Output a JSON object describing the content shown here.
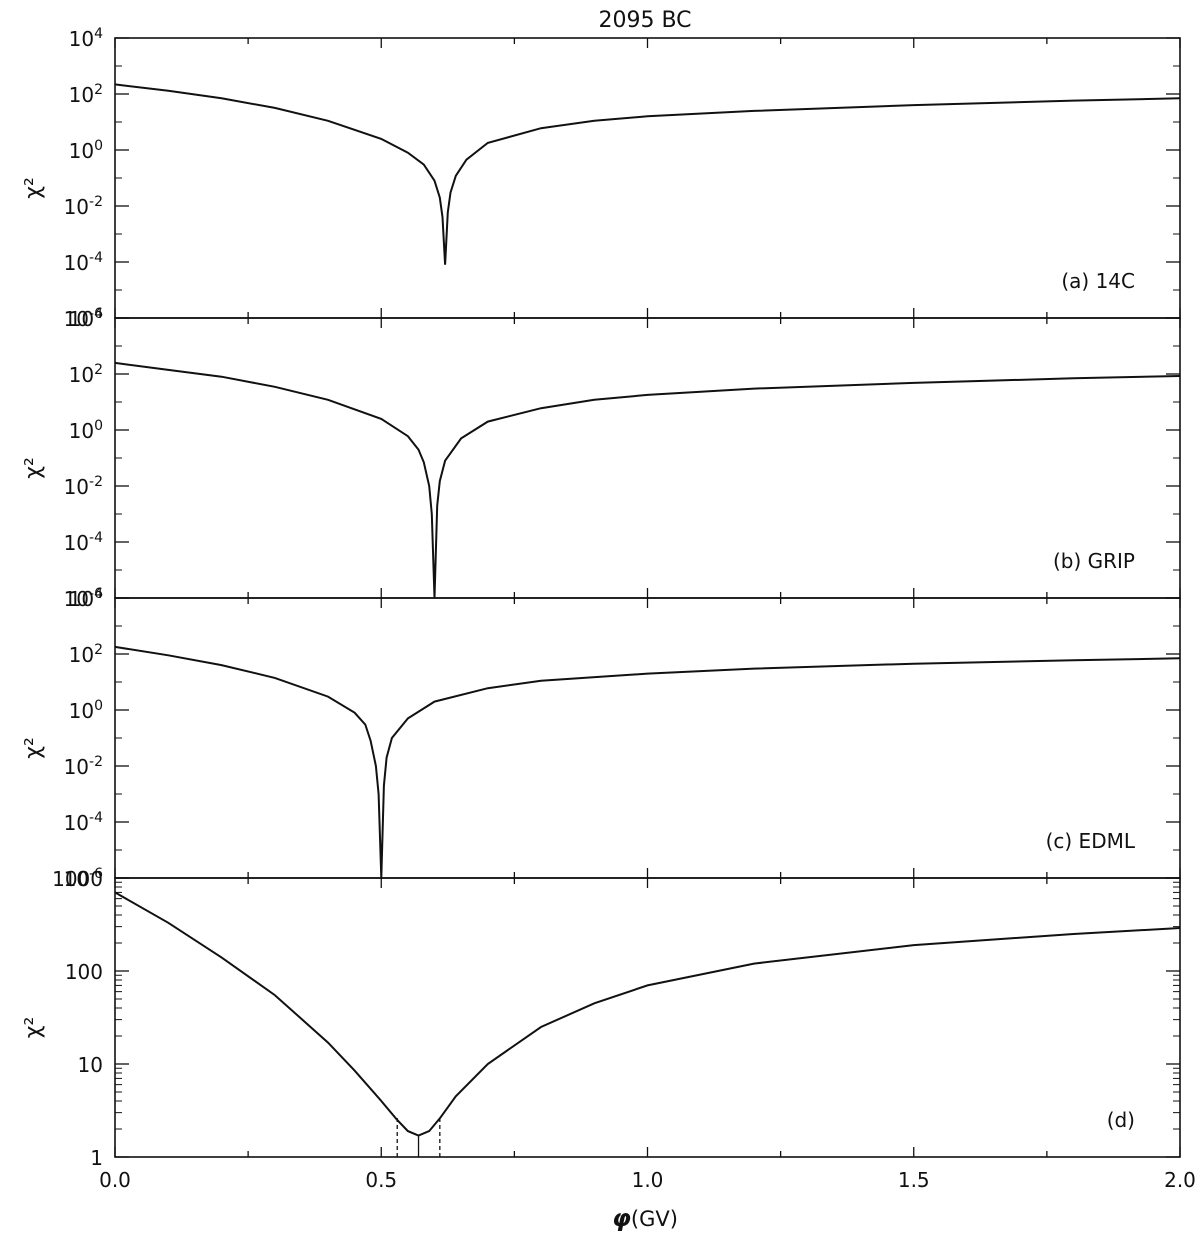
{
  "figure": {
    "title": "2095 BC",
    "xlabel_symbol": "φ",
    "xlabel_unit": "(GV)",
    "ylabel": "χ²"
  },
  "chart_data": [
    {
      "type": "line",
      "panel": "(a) 14C",
      "label": "(a) 14C",
      "scale": "log",
      "ylabel": "χ²",
      "ylim": [
        1e-06,
        10000.0
      ],
      "yticks": [
        "10^4",
        "10^2",
        "10^0",
        "10^-2",
        "10^-4",
        "10^-6"
      ],
      "xlim": [
        0.0,
        2.0
      ],
      "min_x": 0.62,
      "min_y": 8e-05,
      "series": [
        {
          "x": [
            0.0,
            0.1,
            0.2,
            0.3,
            0.4,
            0.5,
            0.55,
            0.58,
            0.6,
            0.61,
            0.615,
            0.62,
            0.625,
            0.63,
            0.64,
            0.66,
            0.7,
            0.8,
            0.9,
            1.0,
            1.2,
            1.5,
            1.8,
            2.0
          ],
          "y": [
            220,
            130,
            70,
            32,
            11,
            2.5,
            0.8,
            0.3,
            0.08,
            0.02,
            0.004,
            8e-05,
            0.006,
            0.03,
            0.12,
            0.45,
            1.8,
            6,
            11,
            16,
            25,
            40,
            58,
            70
          ]
        }
      ]
    },
    {
      "type": "line",
      "panel": "(b) GRIP",
      "label": "(b) GRIP",
      "scale": "log",
      "ylabel": "χ²",
      "ylim": [
        1e-06,
        10000.0
      ],
      "yticks": [
        "10^4",
        "10^2",
        "10^0",
        "10^-2",
        "10^-4",
        "10^-6"
      ],
      "xlim": [
        0.0,
        2.0
      ],
      "min_x": 0.6,
      "min_y": 1e-06,
      "series": [
        {
          "x": [
            0.0,
            0.1,
            0.2,
            0.3,
            0.4,
            0.5,
            0.55,
            0.57,
            0.58,
            0.59,
            0.595,
            0.6,
            0.605,
            0.61,
            0.62,
            0.65,
            0.7,
            0.8,
            0.9,
            1.0,
            1.2,
            1.5,
            1.8,
            2.0
          ],
          "y": [
            250,
            140,
            80,
            35,
            12,
            2.5,
            0.6,
            0.2,
            0.07,
            0.01,
            0.001,
            1e-06,
            0.002,
            0.015,
            0.08,
            0.5,
            2,
            6,
            12,
            18,
            30,
            48,
            70,
            85
          ]
        }
      ]
    },
    {
      "type": "line",
      "panel": "(c) EDML",
      "label": "(c) EDML",
      "scale": "log",
      "ylabel": "χ²",
      "ylim": [
        1e-06,
        10000.0
      ],
      "yticks": [
        "10^4",
        "10^2",
        "10^0",
        "10^-2",
        "10^-4",
        "10^-6"
      ],
      "xlim": [
        0.0,
        2.0
      ],
      "min_x": 0.5,
      "min_y": 1e-06,
      "series": [
        {
          "x": [
            0.0,
            0.1,
            0.2,
            0.3,
            0.4,
            0.45,
            0.47,
            0.48,
            0.49,
            0.495,
            0.5,
            0.505,
            0.51,
            0.52,
            0.55,
            0.6,
            0.7,
            0.8,
            1.0,
            1.2,
            1.5,
            1.8,
            2.0
          ],
          "y": [
            180,
            90,
            40,
            14,
            3,
            0.8,
            0.3,
            0.08,
            0.01,
            0.001,
            1e-06,
            0.002,
            0.02,
            0.1,
            0.5,
            2,
            6,
            11,
            20,
            30,
            45,
            60,
            70
          ]
        }
      ]
    },
    {
      "type": "line",
      "panel": "(d)",
      "label": "(d)",
      "scale": "log",
      "ylabel": "χ²",
      "ylim": [
        1,
        1000
      ],
      "yticks": [
        "1000",
        "100",
        "10",
        "1"
      ],
      "xlim": [
        0.0,
        2.0
      ],
      "xticks": [
        "0.0",
        "0.5",
        "1.0",
        "1.5",
        "2.0"
      ],
      "min_x": 0.57,
      "min_y": 1.7,
      "uncertainty_band": [
        0.53,
        0.61
      ],
      "series": [
        {
          "x": [
            0.0,
            0.1,
            0.2,
            0.3,
            0.4,
            0.45,
            0.5,
            0.53,
            0.55,
            0.57,
            0.59,
            0.61,
            0.64,
            0.7,
            0.8,
            0.9,
            1.0,
            1.2,
            1.5,
            1.8,
            2.0
          ],
          "y": [
            700,
            330,
            140,
            55,
            17,
            8.5,
            4,
            2.5,
            1.9,
            1.7,
            1.9,
            2.6,
            4.5,
            10,
            25,
            45,
            70,
            120,
            190,
            250,
            290
          ]
        }
      ]
    }
  ]
}
